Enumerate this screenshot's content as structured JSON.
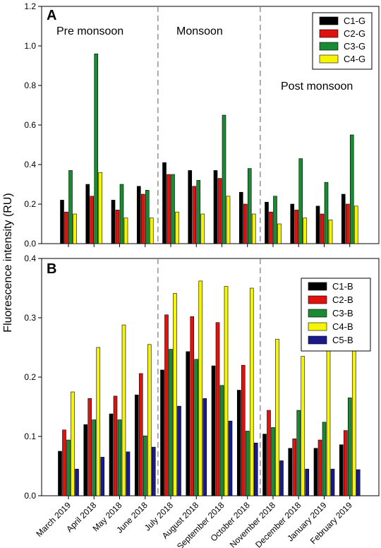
{
  "y_axis_label": "Fluorescence intensity (RU)",
  "months": [
    "March 2019",
    "April 2018",
    "May 2018",
    "June 2018",
    "July 2018",
    "August 2018",
    "September 2018",
    "October 2018",
    "November 2018",
    "December 2018",
    "January 2019",
    "February 2019"
  ],
  "chart_data": [
    {
      "panel": "A",
      "type": "bar",
      "categories": [
        "March 2019",
        "April 2018",
        "May 2018",
        "June 2018",
        "July 2018",
        "August 2018",
        "September 2018",
        "October 2018",
        "November 2018",
        "December 2018",
        "January 2019",
        "February 2019"
      ],
      "ylim": [
        0,
        1.2
      ],
      "yticks": [
        0.0,
        0.2,
        0.4,
        0.6,
        0.8,
        1.0,
        1.2
      ],
      "ytick_labels": [
        "0.0",
        "0.2",
        "0.4",
        "0.6",
        "0.8",
        "1.0",
        "1.2"
      ],
      "season_labels": [
        "Pre monsoon",
        "Monsoon",
        "Post monsoon"
      ],
      "season_dividers_after_index": [
        3,
        7
      ],
      "legend_placement": "top-right",
      "series": [
        {
          "name": "C1-G",
          "color": "#000000",
          "values": [
            0.22,
            0.3,
            0.22,
            0.29,
            0.41,
            0.37,
            0.37,
            0.26,
            0.21,
            0.2,
            0.19,
            0.25
          ]
        },
        {
          "name": "C2-G",
          "color": "#e0120d",
          "values": [
            0.16,
            0.24,
            0.17,
            0.25,
            0.35,
            0.29,
            0.33,
            0.2,
            0.16,
            0.17,
            0.15,
            0.2
          ]
        },
        {
          "name": "C3-G",
          "color": "#1a8a34",
          "values": [
            0.37,
            0.96,
            0.3,
            0.27,
            0.35,
            0.32,
            0.65,
            0.38,
            0.24,
            0.43,
            0.31,
            0.55
          ]
        },
        {
          "name": "C4-G",
          "color": "#f5f500",
          "values": [
            0.15,
            0.36,
            0.13,
            0.13,
            0.16,
            0.15,
            0.24,
            0.15,
            0.1,
            0.13,
            0.12,
            0.19
          ]
        }
      ]
    },
    {
      "panel": "B",
      "type": "bar",
      "categories": [
        "March 2019",
        "April 2018",
        "May 2018",
        "June 2018",
        "July 2018",
        "August 2018",
        "September 2018",
        "October 2018",
        "November 2018",
        "December 2018",
        "January 2019",
        "February 2019"
      ],
      "ylim": [
        0,
        0.4
      ],
      "yticks": [
        0.0,
        0.1,
        0.2,
        0.3,
        0.4
      ],
      "ytick_labels": [
        "0.0",
        "0.1",
        "0.2",
        "0.3",
        "0.4"
      ],
      "season_dividers_after_index": [
        3,
        7
      ],
      "legend_placement": "top-right",
      "series": [
        {
          "name": "C1-B",
          "color": "#000000",
          "values": [
            0.075,
            0.12,
            0.138,
            0.17,
            0.212,
            0.243,
            0.219,
            0.178,
            0.104,
            0.08,
            0.08,
            0.086
          ]
        },
        {
          "name": "C2-B",
          "color": "#e0120d",
          "values": [
            0.111,
            0.164,
            0.168,
            0.206,
            0.305,
            0.302,
            0.292,
            0.22,
            0.144,
            0.096,
            0.094,
            0.11
          ]
        },
        {
          "name": "C3-B",
          "color": "#1a8a34",
          "values": [
            0.094,
            0.128,
            0.128,
            0.101,
            0.247,
            0.23,
            0.186,
            0.109,
            0.115,
            0.144,
            0.124,
            0.165
          ]
        },
        {
          "name": "C4-B",
          "color": "#f5f500",
          "values": [
            0.175,
            0.25,
            0.288,
            0.255,
            0.341,
            0.362,
            0.353,
            0.35,
            0.264,
            0.235,
            0.248,
            0.278
          ]
        },
        {
          "name": "C5-B",
          "color": "#1a1a8c",
          "values": [
            0.045,
            0.065,
            0.074,
            0.082,
            0.151,
            0.164,
            0.126,
            0.089,
            0.059,
            0.045,
            0.045,
            0.044
          ]
        }
      ]
    }
  ]
}
